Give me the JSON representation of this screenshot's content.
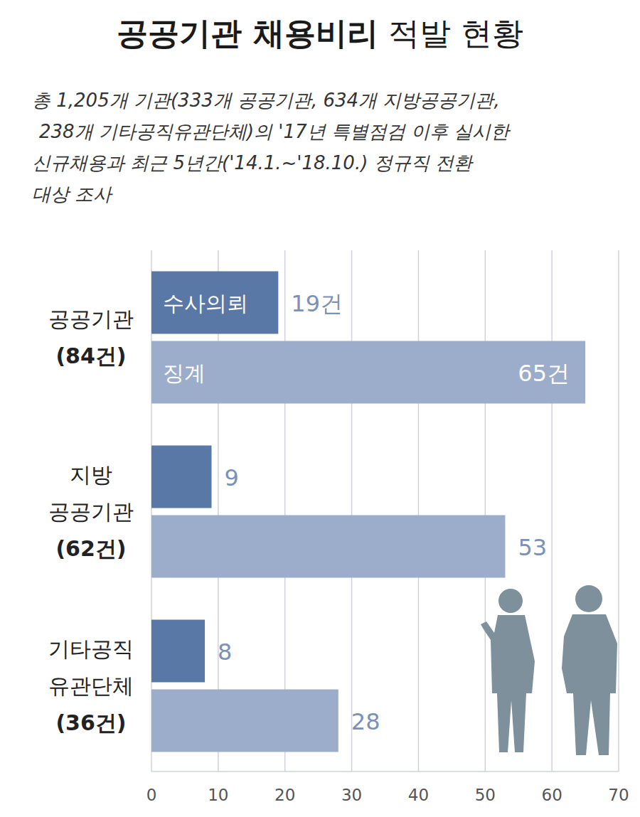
{
  "chart_data": {
    "type": "bar",
    "orientation": "horizontal",
    "title": "공공기관 채용비리 적발 현황",
    "subtitle": [
      "총 1,205개 기관(333개 공공기관, 634개 지방공공기관,",
      "238개 기타공직유관단체)의 '17년 특별점검 이후 실시한",
      "신규채용과 최근 5년간('14.1.~'18.10.) 정규직 전환",
      "대상 조사"
    ],
    "categories": [
      "공공기관\n(84건)",
      "지방\n공공기관\n(62건)",
      "기타공직\n유관단체\n(36건)"
    ],
    "series": [
      {
        "name": "수사의뢰",
        "color": "#5a78a5",
        "values": [
          19,
          9,
          8
        ],
        "value_labels": [
          "19건",
          "9",
          "8"
        ]
      },
      {
        "name": "징계",
        "color": "#9badca",
        "values": [
          65,
          53,
          28
        ],
        "value_labels": [
          "65건",
          "53",
          "28"
        ]
      }
    ],
    "xlim": [
      0,
      70
    ],
    "xticks": [
      0,
      10,
      20,
      30,
      40,
      50,
      60,
      70
    ],
    "grid": true,
    "data_labels": true
  }
}
